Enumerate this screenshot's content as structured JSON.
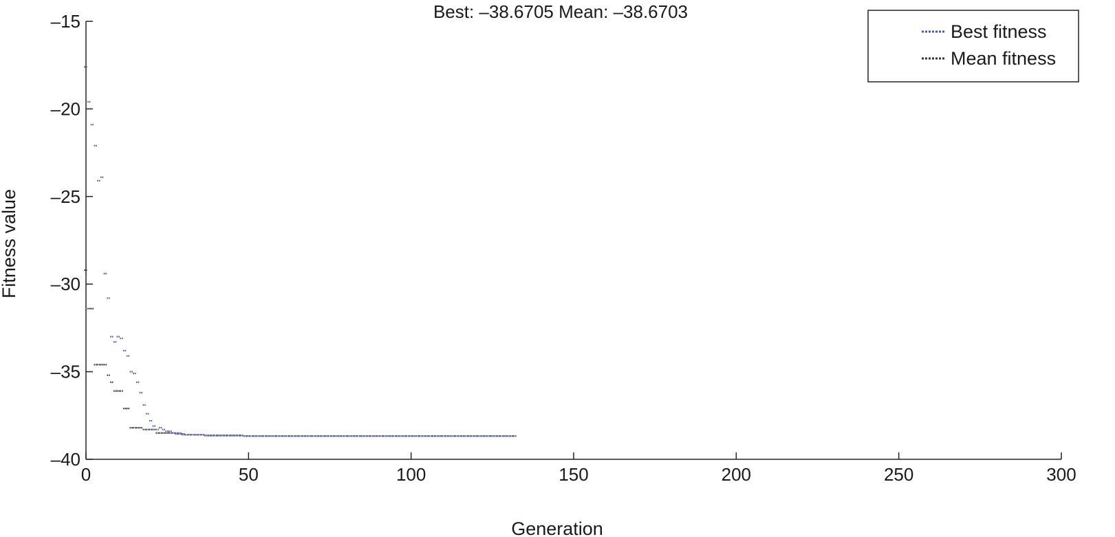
{
  "chart_data": {
    "type": "scatter",
    "title": "Best: –38.6705 Mean: –38.6703",
    "xlabel": "Generation",
    "ylabel": "Fitness value",
    "xlim": [
      0,
      300
    ],
    "ylim": [
      -40,
      -15
    ],
    "xticks": [
      0,
      50,
      100,
      150,
      200,
      250,
      300
    ],
    "xtick_labels": [
      "0",
      "50",
      "100",
      "150",
      "200",
      "250",
      "300"
    ],
    "yticks": [
      -15,
      -20,
      -25,
      -30,
      -35,
      -40
    ],
    "ytick_labels": [
      "–15",
      "–20",
      "–25",
      "–30",
      "–35",
      "–40"
    ],
    "grid": false,
    "legend_position": "top-right",
    "series": [
      {
        "name": "Best fitness",
        "color": "#4a55b0",
        "x": [
          0,
          1,
          2,
          3,
          4,
          5,
          6,
          7,
          8,
          9,
          10,
          11,
          12,
          13,
          14,
          15,
          16,
          17,
          18,
          19,
          20,
          21,
          22,
          23,
          24,
          25,
          26,
          27,
          28,
          29,
          30,
          31,
          32,
          33,
          34,
          35,
          36,
          37,
          38,
          39,
          40,
          41,
          42,
          43,
          44,
          45,
          46,
          47,
          48,
          49,
          50,
          51,
          52,
          53,
          54,
          55,
          56,
          57,
          58,
          59,
          60,
          61,
          62,
          63,
          64,
          65,
          66,
          67,
          68,
          69,
          70,
          71,
          72,
          73,
          74,
          75,
          76,
          77,
          78,
          79,
          80,
          81,
          82,
          83,
          84,
          85,
          86,
          87,
          88,
          89,
          90,
          91,
          92,
          93,
          94,
          95,
          96,
          97,
          98,
          99,
          100,
          101,
          102,
          103,
          104,
          105,
          106,
          107,
          108,
          109,
          110,
          111,
          112,
          113,
          114,
          115,
          116,
          117,
          118,
          119,
          120,
          121,
          122,
          123,
          124,
          125,
          126,
          127,
          128,
          129,
          130,
          131,
          132
        ],
        "y": [
          -17.6,
          -19.6,
          -20.9,
          -22.1,
          -24.1,
          -23.9,
          -29.4,
          -30.8,
          -33.0,
          -33.3,
          -33.0,
          -33.1,
          -33.8,
          -34.1,
          -35.0,
          -35.1,
          -35.6,
          -36.2,
          -36.9,
          -37.4,
          -37.8,
          -38.1,
          -38.3,
          -38.2,
          -38.3,
          -38.4,
          -38.4,
          -38.5,
          -38.5,
          -38.5,
          -38.6,
          -38.6,
          -38.6,
          -38.6,
          -38.6,
          -38.6,
          -38.6,
          -38.65,
          -38.65,
          -38.65,
          -38.65,
          -38.65,
          -38.65,
          -38.65,
          -38.65,
          -38.65,
          -38.65,
          -38.65,
          -38.65,
          -38.67,
          -38.67,
          -38.67,
          -38.67,
          -38.67,
          -38.67,
          -38.67,
          -38.67,
          -38.67,
          -38.67,
          -38.67,
          -38.67,
          -38.67,
          -38.67,
          -38.67,
          -38.67,
          -38.67,
          -38.67,
          -38.67,
          -38.67,
          -38.67,
          -38.67,
          -38.67,
          -38.67,
          -38.67,
          -38.67,
          -38.67,
          -38.67,
          -38.67,
          -38.67,
          -38.67,
          -38.67,
          -38.67,
          -38.67,
          -38.67,
          -38.67,
          -38.67,
          -38.67,
          -38.67,
          -38.67,
          -38.67,
          -38.67,
          -38.67,
          -38.67,
          -38.67,
          -38.67,
          -38.67,
          -38.67,
          -38.67,
          -38.67,
          -38.67,
          -38.67,
          -38.67,
          -38.67,
          -38.67,
          -38.67,
          -38.67,
          -38.67,
          -38.67,
          -38.67,
          -38.67,
          -38.67,
          -38.67,
          -38.67,
          -38.67,
          -38.67,
          -38.67,
          -38.67,
          -38.67,
          -38.67,
          -38.67,
          -38.67,
          -38.67,
          -38.67,
          -38.67,
          -38.67,
          -38.67,
          -38.67,
          -38.67,
          -38.67,
          -38.67,
          -38.67,
          -38.67,
          -38.67
        ]
      },
      {
        "name": "Mean fitness",
        "color": "#333333",
        "x": [
          0,
          1,
          2,
          3,
          4,
          5,
          6,
          7,
          8,
          9,
          10,
          11,
          12,
          13,
          14,
          15,
          16,
          17,
          18,
          19,
          20,
          21,
          22,
          23,
          24,
          25,
          26,
          27,
          28,
          29,
          30,
          31,
          32,
          33,
          34,
          35,
          36,
          37,
          38,
          39,
          40,
          41,
          42,
          43,
          44,
          45,
          46,
          47,
          48,
          49,
          50,
          51,
          52,
          53,
          54,
          55,
          56,
          57,
          58,
          59,
          60,
          61,
          62,
          63,
          64,
          65,
          66,
          67,
          68,
          69,
          70,
          71,
          72,
          73,
          74,
          75,
          76,
          77,
          78,
          79,
          80,
          81,
          82,
          83,
          84,
          85,
          86,
          87,
          88,
          89,
          90,
          91,
          92,
          93,
          94,
          95,
          96,
          97,
          98,
          99,
          100,
          101,
          102,
          103,
          104,
          105,
          106,
          107,
          108,
          109,
          110,
          111,
          112,
          113,
          114,
          115,
          116,
          117,
          118,
          119,
          120,
          121,
          122,
          123,
          124,
          125,
          126,
          127,
          128,
          129,
          130,
          131,
          132
        ],
        "y": [
          -29.2,
          -31.4,
          -31.4,
          -34.6,
          -34.6,
          -34.6,
          -34.6,
          -35.2,
          -35.6,
          -36.1,
          -36.1,
          -36.1,
          -37.1,
          -37.1,
          -38.2,
          -38.2,
          -38.2,
          -38.2,
          -38.3,
          -38.3,
          -38.3,
          -38.3,
          -38.5,
          -38.5,
          -38.5,
          -38.5,
          -38.5,
          -38.5,
          -38.55,
          -38.55,
          -38.55,
          -38.6,
          -38.6,
          -38.6,
          -38.6,
          -38.6,
          -38.6,
          -38.63,
          -38.63,
          -38.63,
          -38.63,
          -38.63,
          -38.63,
          -38.63,
          -38.63,
          -38.63,
          -38.63,
          -38.63,
          -38.63,
          -38.67,
          -38.67,
          -38.67,
          -38.67,
          -38.67,
          -38.67,
          -38.67,
          -38.67,
          -38.67,
          -38.67,
          -38.67,
          -38.67,
          -38.67,
          -38.67,
          -38.67,
          -38.67,
          -38.67,
          -38.67,
          -38.67,
          -38.67,
          -38.67,
          -38.67,
          -38.67,
          -38.67,
          -38.67,
          -38.67,
          -38.67,
          -38.67,
          -38.67,
          -38.67,
          -38.67,
          -38.67,
          -38.67,
          -38.67,
          -38.67,
          -38.67,
          -38.67,
          -38.67,
          -38.67,
          -38.67,
          -38.67,
          -38.67,
          -38.67,
          -38.67,
          -38.67,
          -38.67,
          -38.67,
          -38.67,
          -38.67,
          -38.67,
          -38.67,
          -38.67,
          -38.67,
          -38.67,
          -38.67,
          -38.67,
          -38.67,
          -38.67,
          -38.67,
          -38.67,
          -38.67,
          -38.67,
          -38.67,
          -38.67,
          -38.67,
          -38.67,
          -38.67,
          -38.67,
          -38.67,
          -38.67,
          -38.67,
          -38.67,
          -38.67,
          -38.67,
          -38.67,
          -38.67,
          -38.67,
          -38.67,
          -38.67,
          -38.67,
          -38.67,
          -38.67,
          -38.67,
          -38.67
        ]
      }
    ]
  }
}
